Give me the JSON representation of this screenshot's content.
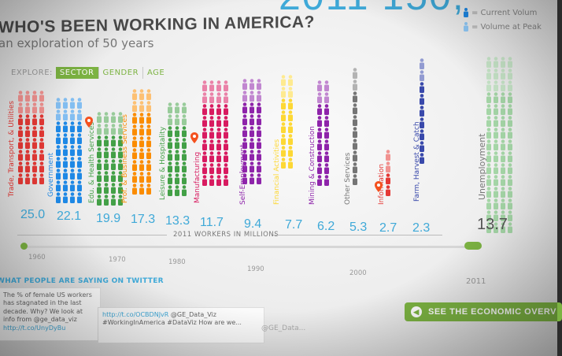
{
  "header": {
    "year_readout": "2011  150,",
    "title": "WHO'S BEEN WORKING IN AMERICA?",
    "subtitle": "an exploration of 50 years"
  },
  "legend": {
    "current_label": "= Current Volum",
    "peak_label": "= Volume at Peak"
  },
  "explore": {
    "label": "EXPLORE:",
    "tabs": [
      {
        "label": "SECTOR",
        "active": true
      },
      {
        "label": "GENDER",
        "active": false
      },
      {
        "label": "AGE",
        "active": false
      }
    ]
  },
  "sectors": [
    {
      "name": "Trade, Transport, & Utilities",
      "value": "25.0",
      "color": "#e53935",
      "pin": false
    },
    {
      "name": "Government",
      "value": "22.1",
      "color": "#1e88e5",
      "pin": false
    },
    {
      "name": "Edu. & Health Services",
      "value": "19.9",
      "color": "#43a047",
      "pin": true
    },
    {
      "name": "Prof. & Business Services",
      "value": "17.3",
      "color": "#fb8c00",
      "pin": false
    },
    {
      "name": "Leisure & Hospitality",
      "value": "13.3",
      "color": "#43a047",
      "pin": false
    },
    {
      "name": "Manufacturing",
      "value": "11.7",
      "color": "#d81b60",
      "pin": true
    },
    {
      "name": "Self-Employment",
      "value": "9.4",
      "color": "#8e24aa",
      "pin": false
    },
    {
      "name": "Financial Activities",
      "value": "7.7",
      "color": "#fdd835",
      "pin": false
    },
    {
      "name": "Mining & Construction",
      "value": "6.2",
      "color": "#8e24aa",
      "pin": false
    },
    {
      "name": "Other Services",
      "value": "5.3",
      "color": "#757575",
      "pin": false
    },
    {
      "name": "Information",
      "value": "2.7",
      "color": "#e53935",
      "pin": true
    },
    {
      "name": "Farm, Harvest & Catch",
      "value": "2.3",
      "color": "#3949ab",
      "pin": false
    },
    {
      "name": "Unemployment",
      "value": "13.7",
      "color": "#9e9e9e",
      "pin": false
    }
  ],
  "axis": {
    "label": "2011 WORKERS IN MILLIONS"
  },
  "timeline": {
    "years": [
      "1960",
      "1970",
      "1980",
      "1990",
      "2000",
      "2011"
    ],
    "selected_year": "2011"
  },
  "twitter": {
    "heading": "WHAT PEOPLE ARE SAYING ON TWITTER",
    "tweets": [
      {
        "text": "The % of female US workers has stagnated in the last decade. Why? We look at info from @ge_data_viz ",
        "link": "http://t.co/UnyDyBu"
      },
      {
        "text": "@GE_Data_Viz #WorkingInAmerica #DataViz How are we...",
        "link": "http://t.co/OCBDNJvR"
      }
    ]
  },
  "cta": {
    "label": "SEE THE ECONOMIC OVERV"
  },
  "footer": {
    "ge_text": "@GE_Data..."
  }
}
